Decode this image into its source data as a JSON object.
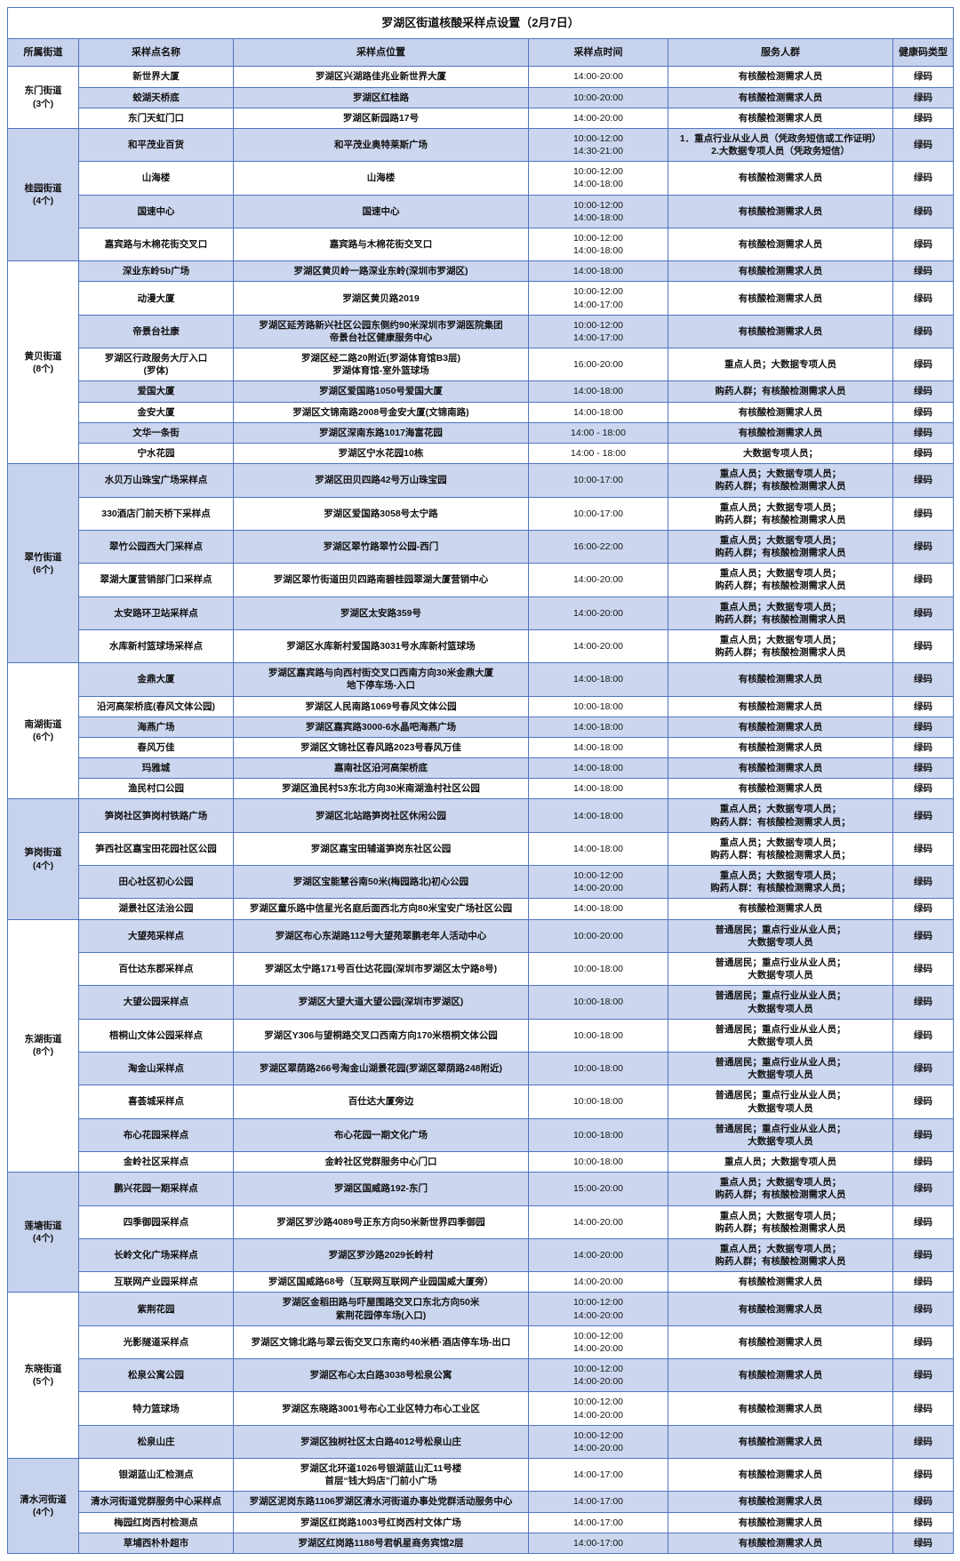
{
  "title": "罗湖区街道核酸采样点设置（2月7日）",
  "columns": [
    "所属街道",
    "采样点名称",
    "采样点位置",
    "采样点时间",
    "服务人群",
    "健康码类型"
  ],
  "colors": {
    "border": "#4f74c2",
    "header_bg": "#c7d2ec",
    "alt_row_bg": "#ccd6ee",
    "street_shade_bg": "#c7d2ec",
    "text": "#111111"
  },
  "groups": [
    {
      "street": "东门街道\n(3个)",
      "rows": [
        {
          "name": "新世界大厦",
          "location": "罗湖区兴湖路佳兆业新世界大厦",
          "time": "14:00-20:00",
          "people": "有核酸检测需求人员",
          "code": "绿码"
        },
        {
          "name": "蛟湖天桥底",
          "location": "罗湖区红桂路",
          "time": "10:00-20:00",
          "people": "有核酸检测需求人员",
          "code": "绿码"
        },
        {
          "name": "东门天虹门口",
          "location": "罗湖区新园路17号",
          "time": "14:00-20:00",
          "people": "有核酸检测需求人员",
          "code": "绿码"
        }
      ]
    },
    {
      "street": "桂园街道\n(4个)",
      "rows": [
        {
          "name": "和平茂业百货",
          "location": "和平茂业奥特莱斯广场",
          "time": "10:00-12:00\n14:30-21:00",
          "people": "1．重点行业从业人员（凭政务短信或工作证明）\n2.大数据专项人员（凭政务短信）",
          "code": "绿码"
        },
        {
          "name": "山海楼",
          "location": "山海楼",
          "time": "10:00-12:00\n14:00-18:00",
          "people": "有核酸检测需求人员",
          "code": "绿码"
        },
        {
          "name": "国速中心",
          "location": "国速中心",
          "time": "10:00-12:00\n14:00-18:00",
          "people": "有核酸检测需求人员",
          "code": "绿码"
        },
        {
          "name": "嘉宾路与木棉花街交叉口",
          "location": "嘉宾路与木棉花街交叉口",
          "time": "10:00-12:00\n14:00-18:00",
          "people": "有核酸检测需求人员",
          "code": "绿码"
        }
      ]
    },
    {
      "street": "黄贝街道\n(8个)",
      "rows": [
        {
          "name": "深业东岭5b广场",
          "location": "罗湖区黄贝岭一路深业东岭(深圳市罗湖区)",
          "time": "14:00-18:00",
          "people": "有核酸检测需求人员",
          "code": "绿码"
        },
        {
          "name": "动漫大厦",
          "location": "罗湖区黄贝路2019",
          "time": "10:00-12:00\n14:00-17:00",
          "people": "有核酸检测需求人员",
          "code": "绿码"
        },
        {
          "name": "帝景台社康",
          "location": "罗湖区延芳路新兴社区公园东侧约90米深圳市罗湖医院集团\n帝景台社区健康服务中心",
          "time": "10:00-12:00\n14:00-17:00",
          "people": "有核酸检测需求人员",
          "code": "绿码"
        },
        {
          "name": "罗湖区行政服务大厅入口\n(罗体)",
          "location": "罗湖区经二路20附近(罗湖体育馆B3层)\n罗湖体育馆-室外篮球场",
          "time": "16:00-20:00",
          "people": "重点人员；大数据专项人员",
          "code": "绿码"
        },
        {
          "name": "爱国大厦",
          "location": "罗湖区爱国路1050号爱国大厦",
          "time": "14:00-18:00",
          "people": "购药人群；有核酸检测需求人员",
          "code": "绿码"
        },
        {
          "name": "金安大厦",
          "location": "罗湖区文锦南路2008号金安大厦(文锦南路)",
          "time": "14:00-18:00",
          "people": "有核酸检测需求人员",
          "code": "绿码"
        },
        {
          "name": "文华一条街",
          "location": "罗湖区深南东路1017海富花园",
          "time": "14:00 - 18:00",
          "people": "有核酸检测需求人员",
          "code": "绿码"
        },
        {
          "name": "宁水花园",
          "location": "罗湖区宁水花园10栋",
          "time": "14:00 - 18:00",
          "people": "大数据专项人员；",
          "code": "绿码"
        }
      ]
    },
    {
      "street": "翠竹街道\n(6个)",
      "rows": [
        {
          "name": "水贝万山珠宝广场采样点",
          "location": "罗湖区田贝四路42号万山珠宝园",
          "time": "10:00-17:00",
          "people": "重点人员；大数据专项人员；\n购药人群；有核酸检测需求人员",
          "code": "绿码"
        },
        {
          "name": "330酒店门前天桥下采样点",
          "location": "罗湖区爱国路3058号太宁路",
          "time": "10:00-17:00",
          "people": "重点人员；大数据专项人员；\n购药人群；有核酸检测需求人员",
          "code": "绿码"
        },
        {
          "name": "翠竹公园西大门采样点",
          "location": "罗湖区翠竹路翠竹公园-西门",
          "time": "16:00-22:00",
          "people": "重点人员；大数据专项人员；\n购药人群；有核酸检测需求人员",
          "code": "绿码"
        },
        {
          "name": "翠湖大厦营销部门口采样点",
          "location": "罗湖区翠竹街道田贝四路南碧桂园翠湖大厦营销中心",
          "time": "14:00-20:00",
          "people": "重点人员；大数据专项人员；\n购药人群；有核酸检测需求人员",
          "code": "绿码"
        },
        {
          "name": "太安路环卫站采样点",
          "location": "罗湖区太安路359号",
          "time": "14:00-20:00",
          "people": "重点人员；大数据专项人员；\n购药人群；有核酸检测需求人员",
          "code": "绿码"
        },
        {
          "name": "水库新村篮球场采样点",
          "location": "罗湖区水库新村爱国路3031号水库新村篮球场",
          "time": "14:00-20:00",
          "people": "重点人员；大数据专项人员；\n购药人群；有核酸检测需求人员",
          "code": "绿码"
        }
      ]
    },
    {
      "street": "南湖街道\n(6个)",
      "rows": [
        {
          "name": "金鼎大厦",
          "location": "罗湖区嘉宾路与向西村街交叉口西南方向30米金鼎大厦\n地下停车场-入口",
          "time": "14:00-18:00",
          "people": "有核酸检测需求人员",
          "code": "绿码"
        },
        {
          "name": "沿河高架桥底(春风文体公园)",
          "location": "罗湖区人民南路1069号春风文体公园",
          "time": "10:00-18:00",
          "people": "有核酸检测需求人员",
          "code": "绿码"
        },
        {
          "name": "海燕广场",
          "location": "罗湖区嘉宾路3000-6水晶吧海燕广场",
          "time": "14:00-18:00",
          "people": "有核酸检测需求人员",
          "code": "绿码"
        },
        {
          "name": "春风万佳",
          "location": "罗湖区文锦社区春风路2023号春风万佳",
          "time": "14:00-18:00",
          "people": "有核酸检测需求人员",
          "code": "绿码"
        },
        {
          "name": "玛雅城",
          "location": "嘉南社区沿河高架桥底",
          "time": "14:00-18:00",
          "people": "有核酸检测需求人员",
          "code": "绿码"
        },
        {
          "name": "渔民村口公园",
          "location": "罗湖区渔民村53东北方向30米南湖渔村社区公园",
          "time": "14:00-18:00",
          "people": "有核酸检测需求人员",
          "code": "绿码"
        }
      ]
    },
    {
      "street": "笋岗街道\n(4个)",
      "rows": [
        {
          "name": "笋岗社区笋岗村铁路广场",
          "location": "罗湖区北站路笋岗社区休闲公园",
          "time": "14:00-18:00",
          "people": "重点人员；大数据专项人员；\n购药人群：有核酸检测需求人员；",
          "code": "绿码"
        },
        {
          "name": "笋西社区嘉宝田花园社区公园",
          "location": "罗湖区嘉宝田辅道笋岗东社区公园",
          "time": "14:00-18:00",
          "people": "重点人员；大数据专项人员；\n购药人群：有核酸检测需求人员；",
          "code": "绿码"
        },
        {
          "name": "田心社区初心公园",
          "location": "罗湖区宝能慧谷南50米(梅园路北)初心公园",
          "time": "10:00-12:00\n14:00-20:00",
          "people": "重点人员；大数据专项人员；\n购药人群：有核酸检测需求人员；",
          "code": "绿码"
        },
        {
          "name": "湖景社区法治公园",
          "location": "罗湖区童乐路中信星光名庭后面西北方向80米宝安广场社区公园",
          "time": "14:00-18:00",
          "people": "有核酸检测需求人员",
          "code": "绿码"
        }
      ]
    },
    {
      "street": "东湖街道\n(8个)",
      "rows": [
        {
          "name": "大望苑采样点",
          "location": "罗湖区布心东湖路112号大望苑翠鹏老年人活动中心",
          "time": "10:00-20:00",
          "people": "普通居民；重点行业从业人员；\n大数据专项人员",
          "code": "绿码"
        },
        {
          "name": "百仕达东郡采样点",
          "location": "罗湖区太宁路171号百仕达花园(深圳市罗湖区太宁路8号)",
          "time": "10:00-18:00",
          "people": "普通居民；重点行业从业人员；\n大数据专项人员",
          "code": "绿码"
        },
        {
          "name": "大望公园采样点",
          "location": "罗湖区大望大道大望公园(深圳市罗湖区)",
          "time": "10:00-18:00",
          "people": "普通居民；重点行业从业人员；\n大数据专项人员",
          "code": "绿码"
        },
        {
          "name": "梧桐山文体公园采样点",
          "location": "罗湖区Y306与望桐路交叉口西南方向170米梧桐文体公园",
          "time": "10:00-18:00",
          "people": "普通居民；重点行业从业人员；\n大数据专项人员",
          "code": "绿码"
        },
        {
          "name": "淘金山采样点",
          "location": "罗湖区翠荫路266号淘金山湖景花园(罗湖区翠荫路248附近)",
          "time": "10:00-18:00",
          "people": "普通居民；重点行业从业人员；\n大数据专项人员",
          "code": "绿码"
        },
        {
          "name": "喜荟城采样点",
          "location": "百仕达大厦旁边",
          "time": "10:00-18:00",
          "people": "普通居民；重点行业从业人员；\n大数据专项人员",
          "code": "绿码"
        },
        {
          "name": "布心花园采样点",
          "location": "布心花园一期文化广场",
          "time": "10:00-18:00",
          "people": "普通居民；重点行业从业人员；\n大数据专项人员",
          "code": "绿码"
        },
        {
          "name": "金岭社区采样点",
          "location": "金岭社区党群服务中心门口",
          "time": "10:00-18:00",
          "people": "重点人员；大数据专项人员",
          "code": "绿码"
        }
      ]
    },
    {
      "street": "莲塘街道\n(4个)",
      "rows": [
        {
          "name": "鹏兴花园一期采样点",
          "location": "罗湖区国威路192-东门",
          "time": "15:00-20:00",
          "people": "重点人员；大数据专项人员；\n购药人群；有核酸检测需求人员",
          "code": "绿码"
        },
        {
          "name": "四季御园采样点",
          "location": "罗湖区罗沙路4089号正东方向50米新世界四季御园",
          "time": "14:00-20:00",
          "people": "重点人员；大数据专项人员；\n购药人群；有核酸检测需求人员",
          "code": "绿码"
        },
        {
          "name": "长岭文化广场采样点",
          "location": "罗湖区罗沙路2029长岭村",
          "time": "14:00-20:00",
          "people": "重点人员；大数据专项人员；\n购药人群；有核酸检测需求人员",
          "code": "绿码"
        },
        {
          "name": "互联网产业园采样点",
          "location": "罗湖区国威路68号（互联网互联网产业园国威大厦旁）",
          "time": "14:00-20:00",
          "people": "有核酸检测需求人员",
          "code": "绿码"
        }
      ]
    },
    {
      "street": "东晓街道\n(5个)",
      "rows": [
        {
          "name": "紫荆花园",
          "location": "罗湖区金稻田路与吓屋围路交叉口东北方向50米\n紫荆花园停车场(入口)",
          "time": "10:00-12:00\n14:00-20:00",
          "people": "有核酸检测需求人员",
          "code": "绿码"
        },
        {
          "name": "光影隧道采样点",
          "location": "罗湖区文锦北路与翠云街交叉口东南约40米栖·酒店停车场-出口",
          "time": "10:00-12:00\n14:00-20:00",
          "people": "有核酸检测需求人员",
          "code": "绿码"
        },
        {
          "name": "松泉公寓公园",
          "location": "罗湖区布心太白路3038号松泉公寓",
          "time": "10:00-12:00\n14:00-20:00",
          "people": "有核酸检测需求人员",
          "code": "绿码"
        },
        {
          "name": "特力篮球场",
          "location": "罗湖区东晓路3001号布心工业区特力布心工业区",
          "time": "10:00-12:00\n14:00-20:00",
          "people": "有核酸检测需求人员",
          "code": "绿码"
        },
        {
          "name": "松泉山庄",
          "location": "罗湖区独树社区太白路4012号松泉山庄",
          "time": "10:00-12:00\n14:00-20:00",
          "people": "有核酸检测需求人员",
          "code": "绿码"
        }
      ]
    },
    {
      "street": "清水河街道\n(4个)",
      "rows": [
        {
          "name": "银湖蓝山汇检测点",
          "location": "罗湖区北环道1026号银湖蓝山汇11号楼\n首层“钱大妈店”门前小广场",
          "time": "14:00-17:00",
          "people": "有核酸检测需求人员",
          "code": "绿码"
        },
        {
          "name": "清水河街道党群服务中心采样点",
          "location": "罗湖区泥岗东路1106罗湖区清水河街道办事处党群活动服务中心",
          "time": "14:00-17:00",
          "people": "有核酸检测需求人员",
          "code": "绿码"
        },
        {
          "name": "梅园红岗西村检测点",
          "location": "罗湖区红岗路1003号红岗西村文体广场",
          "time": "14:00-17:00",
          "people": "有核酸检测需求人员",
          "code": "绿码"
        },
        {
          "name": "草埔西朴朴超市",
          "location": "罗湖区红岗路1188号君帆星商务宾馆2层",
          "time": "14:00-17:00",
          "people": "有核酸检测需求人员",
          "code": "绿码"
        }
      ]
    }
  ]
}
